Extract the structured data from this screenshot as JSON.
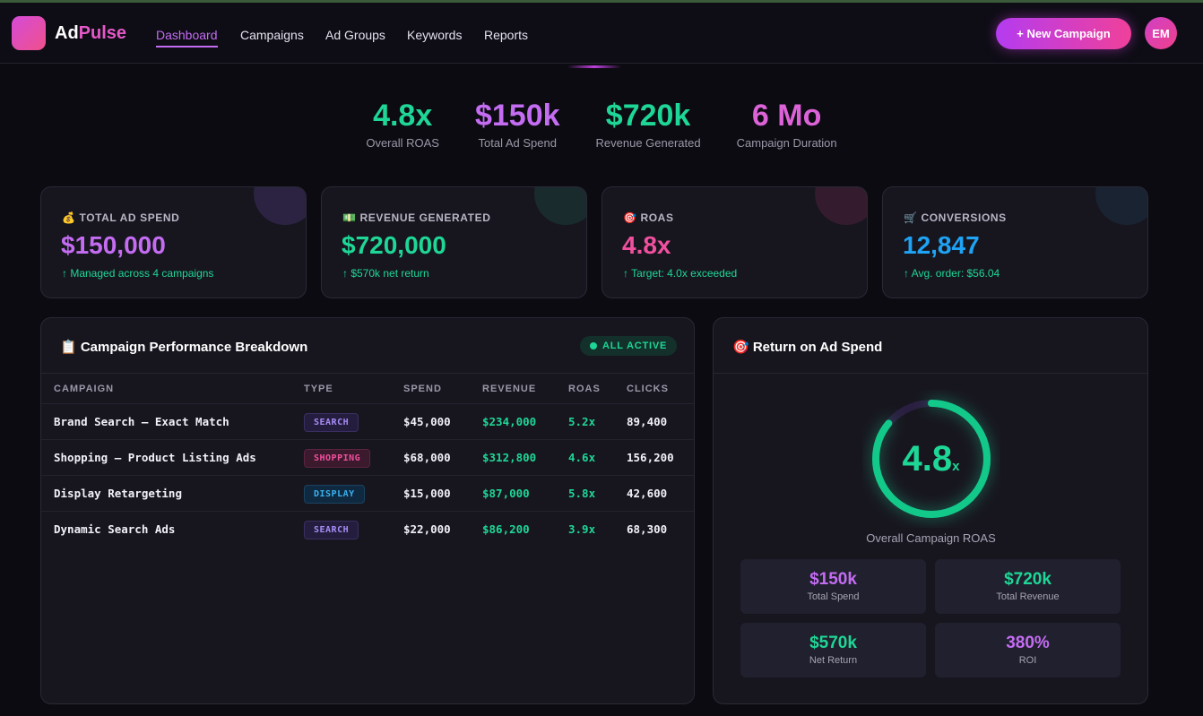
{
  "header": {
    "logo_prefix": "Ad",
    "logo_suffix": "Pulse",
    "nav": [
      "Dashboard",
      "Campaigns",
      "Ad Groups",
      "Keywords",
      "Reports"
    ],
    "button": "+ New Campaign",
    "avatar": "EM"
  },
  "hero": [
    {
      "value": "4.8x",
      "label": "Overall ROAS"
    },
    {
      "value": "$150k",
      "label": "Total Ad Spend"
    },
    {
      "value": "$720k",
      "label": "Revenue Generated"
    },
    {
      "value": "6 Mo",
      "label": "Campaign Duration"
    }
  ],
  "stats": [
    {
      "label": "💰 TOTAL AD SPEND",
      "value": "$150,000",
      "note": "↑ Managed across 4 campaigns"
    },
    {
      "label": "💵 REVENUE GENERATED",
      "value": "$720,000",
      "note": "↑ $570k net return"
    },
    {
      "label": "🎯 ROAS",
      "value": "4.8x",
      "note": "↑ Target: 4.0x exceeded"
    },
    {
      "label": "🛒 CONVERSIONS",
      "value": "12,847",
      "note": "↑ Avg. order: $56.04"
    }
  ],
  "table": {
    "title": "📋 Campaign Performance Breakdown",
    "badge": "ALL ACTIVE",
    "columns": [
      "CAMPAIGN",
      "TYPE",
      "SPEND",
      "REVENUE",
      "ROAS",
      "CLICKS"
    ],
    "rows": [
      [
        "Brand Search – Exact Match",
        "SEARCH",
        "$45,000",
        "$234,000",
        "5.2x",
        "89,400"
      ],
      [
        "Shopping – Product Listing Ads",
        "SHOPPING",
        "$68,000",
        "$312,800",
        "4.6x",
        "156,200"
      ],
      [
        "Display Retargeting",
        "DISPLAY",
        "$15,000",
        "$87,000",
        "5.8x",
        "42,600"
      ],
      [
        "Dynamic Search Ads",
        "SEARCH",
        "$22,000",
        "$86,200",
        "3.9x",
        "68,300"
      ]
    ]
  },
  "roas": {
    "title": "🎯 Return on Ad Spend",
    "gauge_value": "4.8",
    "gauge_unit": "x",
    "caption": "Overall Campaign ROAS",
    "tiles": [
      {
        "value": "$150k",
        "label": "Total Spend"
      },
      {
        "value": "$720k",
        "label": "Total Revenue"
      },
      {
        "value": "$570k",
        "label": "Net Return"
      },
      {
        "value": "380%",
        "label": "ROI"
      }
    ]
  }
}
